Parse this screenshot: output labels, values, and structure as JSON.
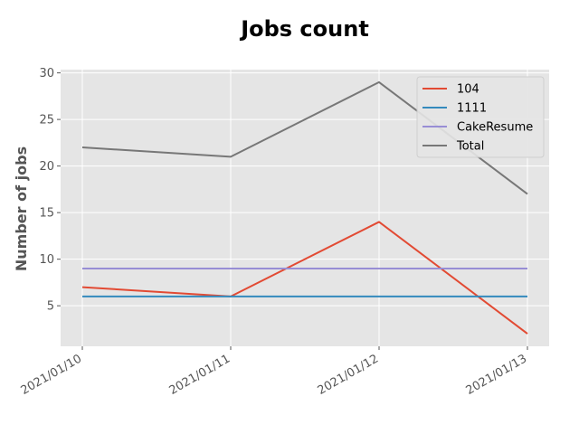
{
  "chart_data": {
    "type": "line",
    "title": "Jobs count",
    "xlabel": "",
    "ylabel": "Number of jobs",
    "categories": [
      "2021/01/10",
      "2021/01/11",
      "2021/01/12",
      "2021/01/13"
    ],
    "yticks": [
      5,
      10,
      15,
      20,
      25,
      30
    ],
    "ylim": [
      0.65,
      30.35
    ],
    "grid": true,
    "legend_position": "top-right",
    "series": [
      {
        "name": "104",
        "color": "#E24A33",
        "values": [
          7,
          6,
          14,
          2
        ]
      },
      {
        "name": "1111",
        "color": "#348ABD",
        "values": [
          6,
          6,
          6,
          6
        ]
      },
      {
        "name": "CakeResume",
        "color": "#988ED5",
        "values": [
          9,
          9,
          9,
          9
        ]
      },
      {
        "name": "Total",
        "color": "#777777",
        "values": [
          22,
          21,
          29,
          17
        ]
      }
    ]
  }
}
